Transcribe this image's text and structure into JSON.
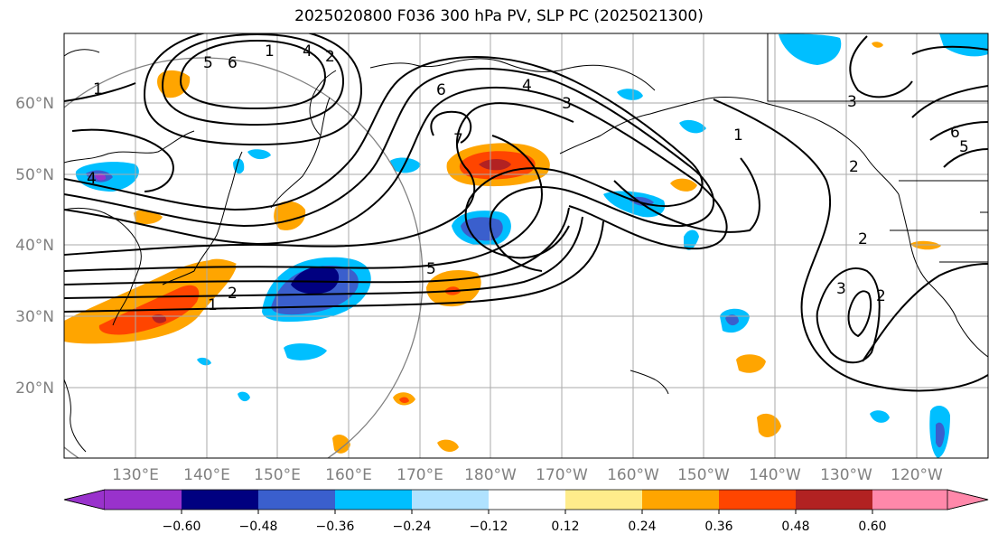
{
  "title": "2025020800 F036 300 hPa PV, SLP PC (2025021300)",
  "lat_labels": [
    "60°N",
    "50°N",
    "40°N",
    "30°N",
    "20°N"
  ],
  "lon_labels": [
    "130°E",
    "140°E",
    "150°E",
    "160°E",
    "170°E",
    "180°W",
    "170°W",
    "160°W",
    "150°W",
    "140°W",
    "130°W",
    "120°W"
  ],
  "colorbar": {
    "colors": [
      "#9932cc",
      "#000080",
      "#3a5fcd",
      "#00bfff",
      "#b0e2ff",
      "#ffffff",
      "#ffec8b",
      "#ffa500",
      "#ff4500",
      "#b22222",
      "#ff88aa"
    ],
    "tick_labels": [
      "−0.60",
      "−0.48",
      "−0.36",
      "−0.24",
      "−0.12",
      "0.12",
      "0.24",
      "0.36",
      "0.48",
      "0.60"
    ]
  },
  "contour_labels": [
    "1",
    "2",
    "4",
    "5",
    "6",
    "7",
    "1",
    "2",
    "5",
    "1",
    "2",
    "3",
    "4",
    "6",
    "3",
    "2",
    "3",
    "2",
    "6",
    "5",
    "4",
    "1"
  ]
}
